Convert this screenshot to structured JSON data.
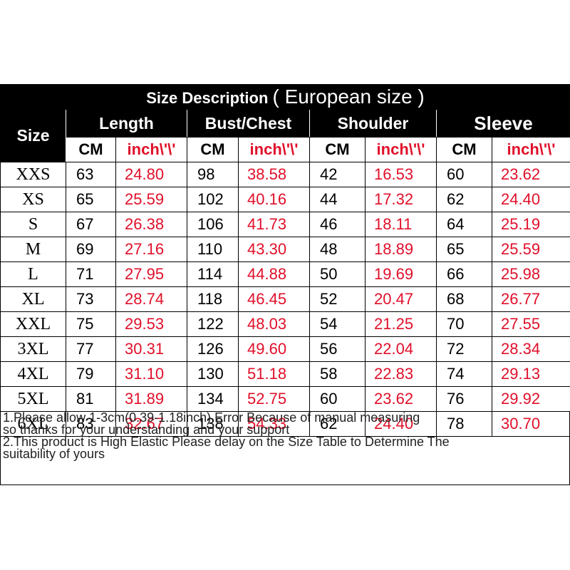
{
  "table": {
    "title": "Size Description",
    "title_suffix": "( European size )",
    "columns": {
      "size": "Size",
      "length": "Length",
      "bust": "Bust/Chest",
      "shoulder": "Shoulder",
      "sleeve": "Sleeve"
    },
    "units": {
      "cm": "CM",
      "inch": "inch\\'\\'"
    },
    "rows": [
      {
        "size": "XXS",
        "length_cm": "63",
        "length_in": "24.80",
        "bust_cm": "98",
        "bust_in": "38.58",
        "shoulder_cm": "42",
        "shoulder_in": "16.53",
        "sleeve_cm": "60",
        "sleeve_in": "23.62"
      },
      {
        "size": "XS",
        "length_cm": "65",
        "length_in": "25.59",
        "bust_cm": "102",
        "bust_in": "40.16",
        "shoulder_cm": "44",
        "shoulder_in": "17.32",
        "sleeve_cm": "62",
        "sleeve_in": "24.40"
      },
      {
        "size": "S",
        "length_cm": "67",
        "length_in": "26.38",
        "bust_cm": "106",
        "bust_in": "41.73",
        "shoulder_cm": "46",
        "shoulder_in": "18.11",
        "sleeve_cm": "64",
        "sleeve_in": "25.19"
      },
      {
        "size": "M",
        "length_cm": "69",
        "length_in": "27.16",
        "bust_cm": "110",
        "bust_in": "43.30",
        "shoulder_cm": "48",
        "shoulder_in": "18.89",
        "sleeve_cm": "65",
        "sleeve_in": "25.59"
      },
      {
        "size": "L",
        "length_cm": "71",
        "length_in": "27.95",
        "bust_cm": "114",
        "bust_in": "44.88",
        "shoulder_cm": "50",
        "shoulder_in": "19.69",
        "sleeve_cm": "66",
        "sleeve_in": "25.98"
      },
      {
        "size": "XL",
        "length_cm": "73",
        "length_in": "28.74",
        "bust_cm": "118",
        "bust_in": "46.45",
        "shoulder_cm": "52",
        "shoulder_in": "20.47",
        "sleeve_cm": "68",
        "sleeve_in": "26.77"
      },
      {
        "size": "XXL",
        "length_cm": "75",
        "length_in": "29.53",
        "bust_cm": "122",
        "bust_in": "48.03",
        "shoulder_cm": "54",
        "shoulder_in": "21.25",
        "sleeve_cm": "70",
        "sleeve_in": "27.55"
      },
      {
        "size": "3XL",
        "length_cm": "77",
        "length_in": "30.31",
        "bust_cm": "126",
        "bust_in": "49.60",
        "shoulder_cm": "56",
        "shoulder_in": "22.04",
        "sleeve_cm": "72",
        "sleeve_in": "28.34"
      },
      {
        "size": "4XL",
        "length_cm": "79",
        "length_in": "31.10",
        "bust_cm": "130",
        "bust_in": "51.18",
        "shoulder_cm": "58",
        "shoulder_in": "22.83",
        "sleeve_cm": "74",
        "sleeve_in": "29.13"
      },
      {
        "size": "5XL",
        "length_cm": "81",
        "length_in": "31.89",
        "bust_cm": "134",
        "bust_in": "52.75",
        "shoulder_cm": "60",
        "shoulder_in": "23.62",
        "sleeve_cm": "76",
        "sleeve_in": "29.92"
      },
      {
        "size": "6XL",
        "length_cm": "83",
        "length_in": "32.67",
        "bust_cm": "138",
        "bust_in": "54.33",
        "shoulder_cm": "62",
        "shoulder_in": "24.40",
        "sleeve_cm": "78",
        "sleeve_in": "30.70"
      }
    ]
  },
  "notes": [
    "1.Please allow 1-3cm(0.39-1.18inch) Error Because of manual measuring",
    "so thanks for your understanding and your support",
    "2.This product is High Elastic Please delay on the Size Table to Determine The",
    "suitability of yours"
  ],
  "colors": {
    "header_bg": "#000000",
    "header_text": "#ffffff",
    "inch_text": "#e0102a"
  }
}
